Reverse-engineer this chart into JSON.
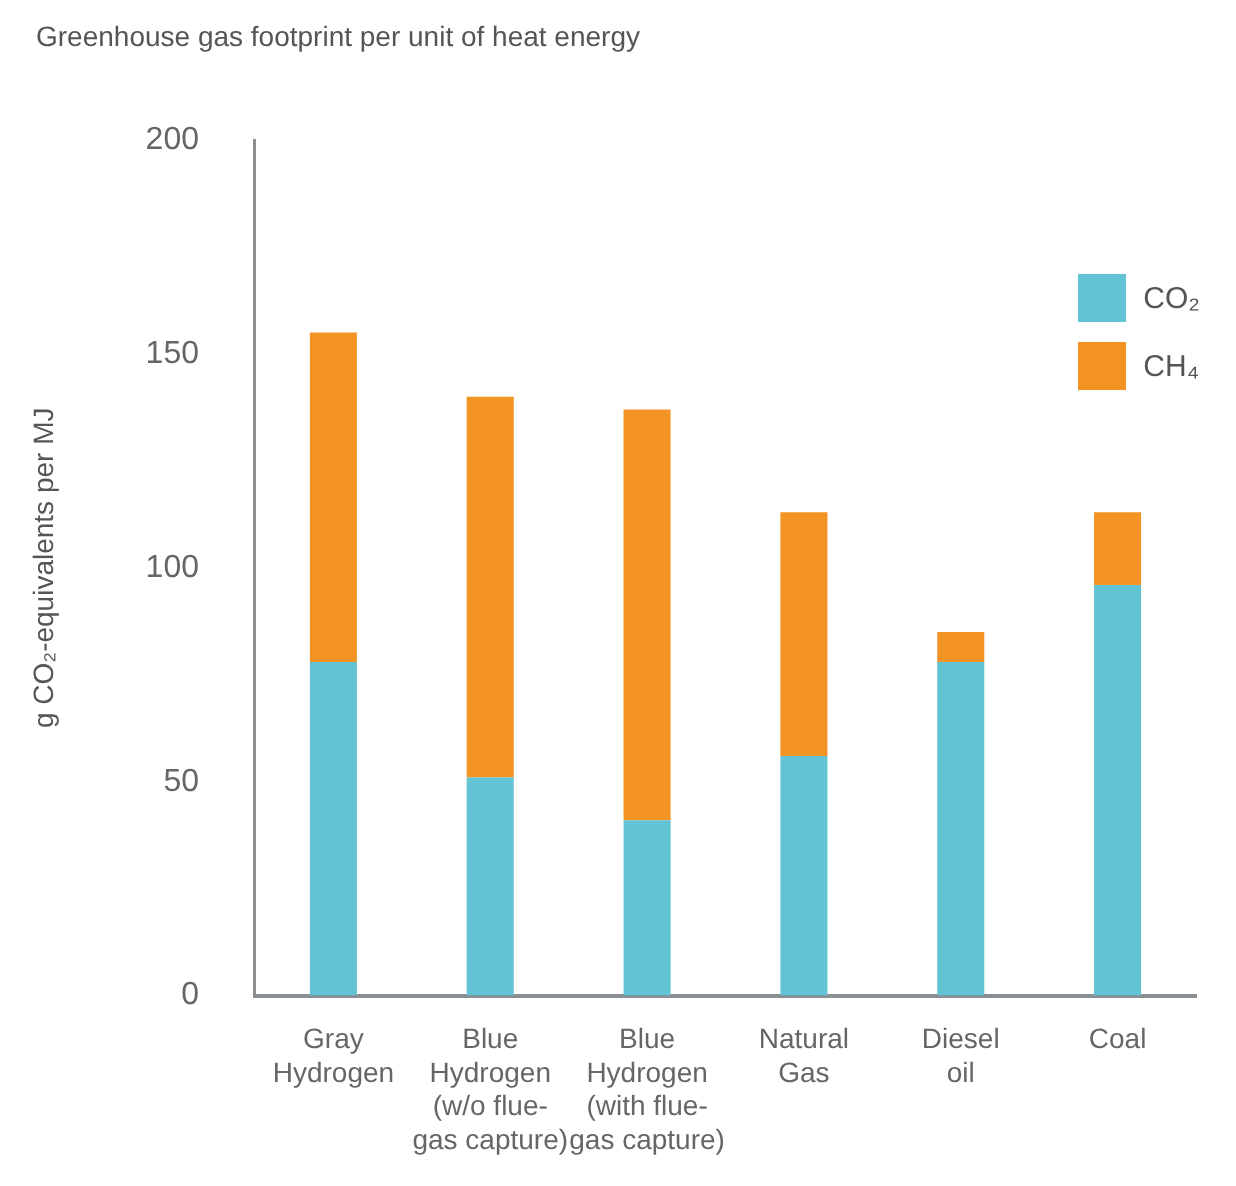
{
  "chart_data": {
    "type": "bar",
    "title": "Greenhouse gas footprint per unit of heat energy",
    "ylabel": "g CO₂-equivalents per MJ",
    "categories": [
      "Gray\nHydrogen",
      "Blue\nHydrogen\n(w/o flue-\ngas capture)",
      "Blue\nHydrogen\n(with flue-\ngas capture)",
      "Natural\nGas",
      "Diesel\noil",
      "Coal"
    ],
    "series": [
      {
        "name": "CO₂",
        "color": "#62c3d4",
        "values": [
          78,
          51,
          41,
          56,
          78,
          96
        ]
      },
      {
        "name": "CH₄",
        "color": "#f39323",
        "values": [
          77,
          89,
          96,
          57,
          7,
          17
        ]
      }
    ],
    "stacked": true,
    "ylim": [
      0,
      200
    ],
    "yticks": [
      0,
      50,
      100,
      150,
      200
    ],
    "grid": false,
    "legend": "top right"
  }
}
